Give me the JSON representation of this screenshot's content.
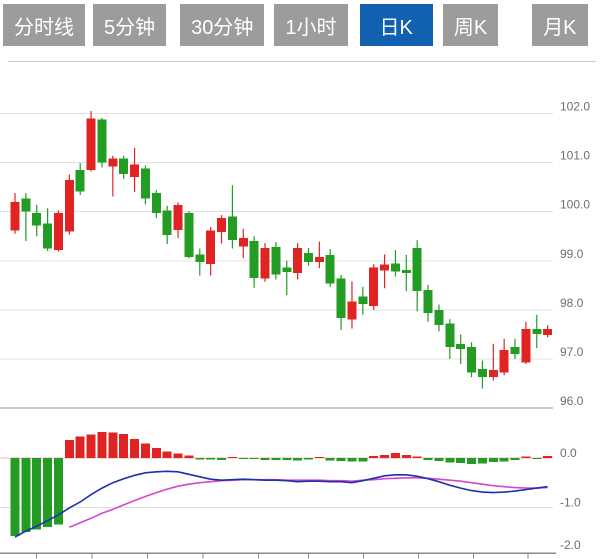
{
  "tabs": {
    "items": [
      {
        "label": "分时线",
        "active": false
      },
      {
        "label": "5分钟",
        "active": false
      },
      {
        "label": "30分钟",
        "active": false
      },
      {
        "label": "1小时",
        "active": false
      },
      {
        "label": "日K",
        "active": true
      },
      {
        "label": "周K",
        "active": false
      },
      {
        "label": "月K",
        "active": false
      }
    ],
    "active_bg": "#1261b0",
    "inactive_bg": "#9c9c9c"
  },
  "chart_data": {
    "type": "candlestick",
    "title": "",
    "legend_position": "none",
    "grid": true,
    "price_axis": {
      "side": "right",
      "labels": [
        "102.0",
        "101.0",
        "100.0",
        "99.0",
        "98.0",
        "97.0",
        "96.0"
      ],
      "values": [
        102,
        101,
        100,
        99,
        98,
        97,
        96
      ],
      "ylim": [
        96,
        102
      ]
    },
    "macd_axis": {
      "side": "right",
      "labels": [
        "0.0",
        "-1.0",
        "-2.0"
      ],
      "values": [
        0,
        -1,
        -2
      ],
      "ylim": [
        -2,
        0.6
      ]
    },
    "colors": {
      "up": "#df2423",
      "down": "#229c22",
      "dif_line": "#1f2fae",
      "dea_line": "#d945cc",
      "grid": "#e0e0e0",
      "zero_line": "#f0b4b4",
      "axis_dark": "#8a8a8a",
      "chart_floor": "#999999",
      "separator": "#cccccc",
      "label_text": "#6e6e6e"
    },
    "candles_ohlc": [
      [
        99.62,
        100.38,
        99.55,
        100.2
      ],
      [
        100.27,
        100.38,
        99.4,
        100.0
      ],
      [
        99.97,
        100.14,
        99.5,
        99.72
      ],
      [
        99.76,
        100.07,
        99.2,
        99.25
      ],
      [
        99.22,
        100.03,
        99.19,
        99.97
      ],
      [
        99.6,
        100.76,
        99.53,
        100.65
      ],
      [
        100.85,
        100.99,
        100.34,
        100.41
      ],
      [
        100.85,
        102.05,
        100.82,
        101.9
      ],
      [
        101.88,
        101.91,
        100.9,
        101.0
      ],
      [
        100.92,
        101.14,
        100.31,
        101.08
      ],
      [
        101.08,
        101.14,
        100.67,
        100.77
      ],
      [
        100.71,
        101.3,
        100.4,
        100.96
      ],
      [
        100.88,
        100.94,
        100.15,
        100.27
      ],
      [
        100.38,
        100.44,
        99.87,
        99.97
      ],
      [
        100.02,
        100.12,
        99.34,
        99.53
      ],
      [
        99.63,
        100.19,
        99.46,
        100.14
      ],
      [
        99.97,
        100.01,
        99.05,
        99.08
      ],
      [
        99.13,
        99.25,
        98.7,
        98.98
      ],
      [
        98.93,
        99.69,
        98.7,
        99.62
      ],
      [
        99.59,
        99.93,
        99.35,
        99.87
      ],
      [
        99.9,
        100.54,
        99.25,
        99.42
      ],
      [
        99.29,
        99.65,
        99.05,
        99.46
      ],
      [
        99.4,
        99.5,
        98.45,
        98.65
      ],
      [
        98.64,
        99.36,
        98.57,
        99.26
      ],
      [
        99.28,
        99.38,
        98.62,
        98.72
      ],
      [
        98.86,
        99.0,
        98.3,
        98.77
      ],
      [
        98.75,
        99.36,
        98.62,
        99.26
      ],
      [
        99.16,
        99.26,
        98.9,
        98.98
      ],
      [
        98.98,
        99.39,
        98.85,
        99.08
      ],
      [
        99.12,
        99.24,
        98.47,
        98.54
      ],
      [
        98.64,
        98.71,
        97.59,
        97.83
      ],
      [
        97.8,
        98.58,
        97.62,
        98.17
      ],
      [
        98.27,
        98.47,
        97.9,
        98.12
      ],
      [
        98.08,
        98.93,
        98.0,
        98.86
      ],
      [
        98.8,
        99.13,
        98.44,
        98.92
      ],
      [
        98.95,
        99.22,
        98.68,
        98.78
      ],
      [
        98.81,
        99.12,
        98.38,
        98.75
      ],
      [
        99.26,
        99.42,
        97.97,
        98.38
      ],
      [
        98.41,
        98.51,
        97.76,
        97.94
      ],
      [
        98.0,
        98.11,
        97.56,
        97.69
      ],
      [
        97.72,
        97.81,
        97.0,
        97.24
      ],
      [
        97.31,
        97.5,
        96.9,
        97.2
      ],
      [
        97.24,
        97.34,
        96.63,
        96.73
      ],
      [
        96.8,
        96.97,
        96.4,
        96.63
      ],
      [
        96.63,
        97.31,
        96.56,
        96.78
      ],
      [
        96.73,
        97.41,
        96.67,
        97.18
      ],
      [
        97.24,
        97.41,
        97.0,
        97.1
      ],
      [
        96.93,
        97.76,
        96.9,
        97.61
      ],
      [
        97.61,
        97.9,
        97.22,
        97.51
      ],
      [
        97.49,
        97.69,
        97.44,
        97.61
      ]
    ],
    "macd": {
      "histogram": [
        -1.58,
        -1.5,
        -1.45,
        -1.4,
        -1.35,
        0.36,
        0.44,
        0.48,
        0.53,
        0.52,
        0.49,
        0.38,
        0.29,
        0.2,
        0.13,
        0.09,
        0.05,
        -0.03,
        -0.03,
        -0.04,
        0.02,
        -0.02,
        -0.01,
        -0.04,
        -0.04,
        -0.04,
        -0.05,
        -0.03,
        0.02,
        -0.05,
        -0.06,
        -0.07,
        -0.07,
        0.04,
        0.06,
        0.1,
        0.06,
        0.03,
        -0.04,
        -0.06,
        -0.09,
        -0.1,
        -0.12,
        -0.11,
        -0.08,
        -0.07,
        -0.04,
        0.03,
        -0.02,
        0.04
      ],
      "dif": [
        -1.6,
        -1.48,
        -1.38,
        -1.27,
        -1.15,
        -1.01,
        -0.89,
        -0.74,
        -0.61,
        -0.5,
        -0.42,
        -0.35,
        -0.3,
        -0.28,
        -0.27,
        -0.28,
        -0.33,
        -0.38,
        -0.43,
        -0.45,
        -0.44,
        -0.43,
        -0.44,
        -0.45,
        -0.45,
        -0.46,
        -0.48,
        -0.47,
        -0.47,
        -0.48,
        -0.48,
        -0.5,
        -0.46,
        -0.41,
        -0.36,
        -0.34,
        -0.34,
        -0.37,
        -0.42,
        -0.48,
        -0.55,
        -0.61,
        -0.66,
        -0.69,
        -0.7,
        -0.69,
        -0.67,
        -0.64,
        -0.61,
        -0.58
      ],
      "dea": [
        null,
        null,
        null,
        null,
        null,
        -1.4,
        -1.31,
        -1.22,
        -1.12,
        -1.04,
        -0.95,
        -0.86,
        -0.78,
        -0.7,
        -0.63,
        -0.57,
        -0.53,
        -0.5,
        -0.48,
        -0.46,
        -0.45,
        -0.44,
        -0.44,
        -0.44,
        -0.44,
        -0.45,
        -0.45,
        -0.45,
        -0.45,
        -0.46,
        -0.46,
        -0.47,
        -0.45,
        -0.44,
        -0.42,
        -0.41,
        -0.4,
        -0.4,
        -0.41,
        -0.43,
        -0.45,
        -0.47,
        -0.5,
        -0.53,
        -0.56,
        -0.58,
        -0.6,
        -0.61,
        -0.61,
        -0.6
      ]
    }
  }
}
